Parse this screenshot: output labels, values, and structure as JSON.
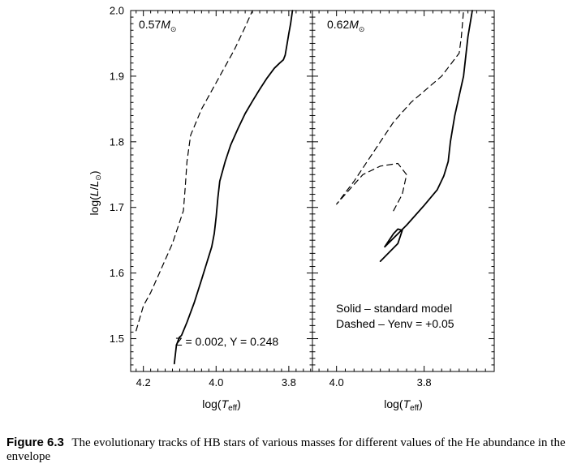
{
  "figure": {
    "label": "Figure 6.3",
    "caption": "The evolutionary tracks of HB stars of various masses for different values of the He abundance in the envelope"
  },
  "chart_data": [
    {
      "type": "line",
      "mass_label": "0.57",
      "mass_symbol": "M⊙",
      "xlabel": "log(Teff)",
      "ylabel": "log(L/L⊙)",
      "x_ticks": [
        "4.2",
        "4.0",
        "3.8"
      ],
      "y_ticks": [
        "1.5",
        "1.6",
        "1.7",
        "1.8",
        "1.9",
        "2.0"
      ],
      "xlim": [
        4.235,
        3.735
      ],
      "ylim": [
        1.45,
        2.0
      ],
      "annotation": "Z = 0.002, Y = 0.248",
      "series": [
        {
          "style": "solid",
          "x": [
            4.115,
            4.109,
            4.101,
            4.095,
            4.08,
            4.06,
            4.04,
            4.012,
            4.005,
            4.0,
            3.995,
            3.99,
            3.975,
            3.96,
            3.94,
            3.92,
            3.9,
            3.88,
            3.86,
            3.84,
            3.825,
            3.815,
            3.81,
            3.805,
            3.8,
            3.795,
            3.79
          ],
          "y": [
            1.462,
            1.49,
            1.502,
            1.505,
            1.525,
            1.555,
            1.59,
            1.64,
            1.66,
            1.685,
            1.715,
            1.74,
            1.77,
            1.795,
            1.82,
            1.843,
            1.862,
            1.88,
            1.897,
            1.912,
            1.92,
            1.925,
            1.932,
            1.948,
            1.965,
            1.98,
            2.0
          ]
        },
        {
          "style": "dashed",
          "x": [
            4.22,
            4.2,
            4.18,
            4.16,
            4.12,
            4.09,
            4.085,
            4.08,
            4.07,
            4.04,
            4.0,
            3.95,
            3.92,
            3.9
          ],
          "y": [
            1.512,
            1.55,
            1.57,
            1.595,
            1.645,
            1.695,
            1.73,
            1.77,
            1.81,
            1.85,
            1.89,
            1.94,
            1.975,
            2.0
          ]
        }
      ]
    },
    {
      "type": "line",
      "mass_label": "0.62",
      "mass_symbol": "M⊙",
      "xlabel": "log(Teff)",
      "x_ticks": [
        "4.0",
        "3.8"
      ],
      "y_ticks": [
        "1.5",
        "1.6",
        "1.7",
        "1.8",
        "1.9",
        "2.0"
      ],
      "xlim": [
        4.055,
        3.64
      ],
      "ylim": [
        1.45,
        2.0
      ],
      "legend_lines": [
        "Solid – standard model",
        "Dashed –  Yenv = +0.05"
      ],
      "series": [
        {
          "style": "solid",
          "x": [
            3.9,
            3.86,
            3.85,
            3.86,
            3.87,
            3.89,
            3.84,
            3.8,
            3.77,
            3.755,
            3.745,
            3.74,
            3.73,
            3.72,
            3.71,
            3.705,
            3.7,
            3.69
          ],
          "y": [
            1.618,
            1.645,
            1.665,
            1.667,
            1.66,
            1.64,
            1.673,
            1.703,
            1.727,
            1.748,
            1.77,
            1.8,
            1.84,
            1.87,
            1.9,
            1.93,
            1.96,
            2.0
          ]
        },
        {
          "style": "dashed",
          "x": [
            3.87,
            3.85,
            3.84,
            3.86,
            3.9,
            3.94,
            4.0,
            3.96,
            3.92,
            3.87,
            3.83,
            3.76,
            3.72,
            3.715,
            3.71
          ],
          "y": [
            1.695,
            1.72,
            1.75,
            1.767,
            1.763,
            1.75,
            1.705,
            1.74,
            1.78,
            1.83,
            1.86,
            1.9,
            1.935,
            1.96,
            2.0
          ]
        }
      ]
    }
  ]
}
